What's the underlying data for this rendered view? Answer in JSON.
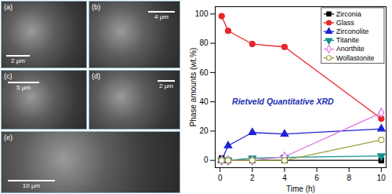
{
  "chart_data": {
    "type": "line",
    "xlabel": "Time (h)",
    "ylabel": "Phase amounts (wt.%)",
    "annotation": "Rietveld Quantitative XRD",
    "x": [
      0.1,
      0.5,
      2,
      4,
      10
    ],
    "series": [
      {
        "name": "Zirconia",
        "color": "#000000",
        "marker": "square",
        "values": [
          1.5,
          0,
          0,
          0,
          0
        ]
      },
      {
        "name": "Glass",
        "color": "#e8262a",
        "marker": "circle",
        "values": [
          98.5,
          88.5,
          79.5,
          77.5,
          28.5
        ]
      },
      {
        "name": "Zirconolite",
        "color": "#2020d8",
        "marker": "triangle",
        "values": [
          0,
          10,
          19,
          18,
          21.5
        ]
      },
      {
        "name": "Titanite",
        "color": "#10908f",
        "marker": "triangle-down",
        "values": [
          0,
          0,
          1.5,
          2,
          3
        ]
      },
      {
        "name": "Anorthite",
        "color": "#e070e0",
        "marker": "diamond-open",
        "values": [
          0,
          0,
          0,
          2.5,
          32.5
        ]
      },
      {
        "name": "Wollastonite",
        "color": "#a0a040",
        "marker": "circle-open",
        "values": [
          0,
          0,
          0,
          0,
          14
        ]
      }
    ],
    "xlim": [
      -0.3,
      10.3
    ],
    "xticks": [
      0,
      2,
      4,
      6,
      8,
      10
    ],
    "ylim": [
      -5,
      105
    ],
    "yticks": [
      0,
      20,
      40,
      60,
      80,
      100
    ],
    "grid": false,
    "legend": "top-right"
  },
  "micrographs": [
    {
      "label": "(a)",
      "scale_bar": "2 μm"
    },
    {
      "label": "(b)",
      "scale_bar": "4 μm"
    },
    {
      "label": "(c)",
      "scale_bar": "5 μm"
    },
    {
      "label": "(d)",
      "scale_bar": "2 μm"
    },
    {
      "label": "(e)",
      "scale_bar": "10 μm"
    }
  ]
}
